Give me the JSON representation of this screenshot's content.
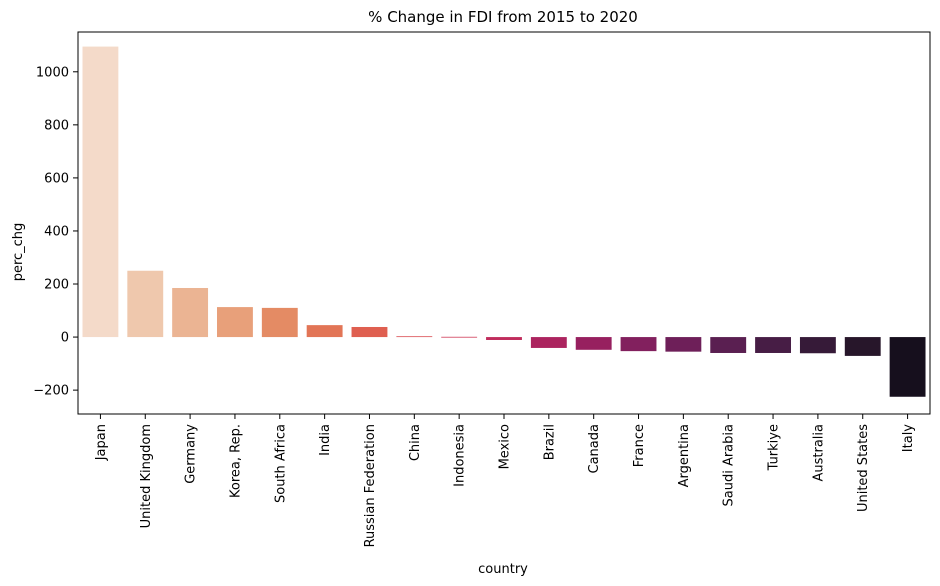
{
  "chart_data": {
    "type": "bar",
    "title": "% Change in FDI from 2015 to 2020",
    "xlabel": "country",
    "ylabel": "perc_chg",
    "ylim": [
      -290,
      1150
    ],
    "yticks": [
      -200,
      0,
      200,
      400,
      600,
      800,
      1000
    ],
    "grid": false,
    "legend": "none",
    "categories": [
      "Japan",
      "United Kingdom",
      "Germany",
      "Korea, Rep.",
      "South Africa",
      "India",
      "Russian Federation",
      "China",
      "Indonesia",
      "Mexico",
      "Brazil",
      "Canada",
      "France",
      "Argentina",
      "Saudi Arabia",
      "Turkiye",
      "Australia",
      "United States",
      "Italy"
    ],
    "values": [
      1095,
      250,
      185,
      113,
      110,
      45,
      38,
      3,
      1,
      -11,
      -41,
      -48,
      -53,
      -55,
      -60,
      -60,
      -61,
      -71,
      -225
    ],
    "colors": [
      "#f4dac9",
      "#efc8ad",
      "#ebb493",
      "#e8a07a",
      "#e48b64",
      "#e27556",
      "#df5f50",
      "#da4b51",
      "#d03a56",
      "#c02c5c",
      "#ac245f",
      "#97205f",
      "#82205e",
      "#6e1f59",
      "#5a1f51",
      "#471d45",
      "#361a38",
      "#27162a",
      "#160f1d"
    ]
  }
}
